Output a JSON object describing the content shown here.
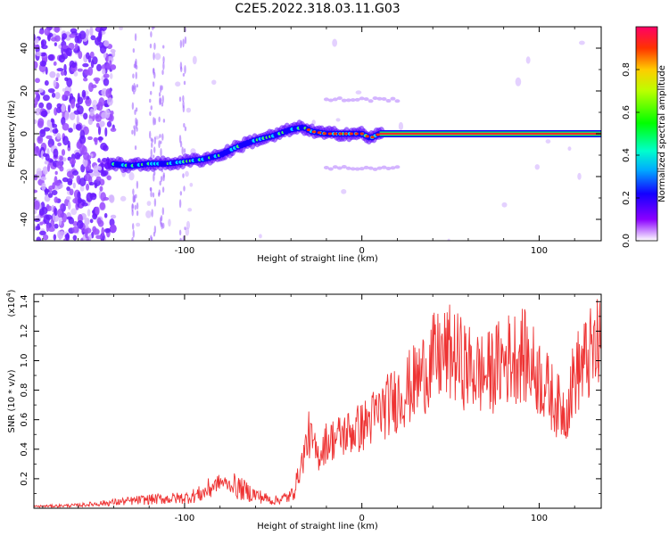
{
  "title": "C2E5.2022.318.03.11.G03",
  "chart_data": [
    {
      "type": "heatmap",
      "xlabel": "Height of straight line (km)",
      "ylabel": "Frequency (Hz)",
      "xlim": [
        -185,
        135
      ],
      "ylim": [
        -50,
        50
      ],
      "xticks": [
        -100,
        0,
        100
      ],
      "yticks": [
        -40,
        -20,
        0,
        20,
        40
      ],
      "colorbar": {
        "label": "Normalized spectral amplitude",
        "range": [
          0,
          1
        ],
        "ticks": [
          "0.0",
          "0.2",
          "0.4",
          "0.6",
          "0.8"
        ]
      },
      "ridge": {
        "x": [
          -142,
          -130,
          -120,
          -110,
          -100,
          -90,
          -80,
          -70,
          -60,
          -50,
          -40,
          -33,
          -28,
          -20,
          -10,
          0,
          5,
          10,
          30,
          60,
          90,
          120,
          133
        ],
        "y": [
          -14,
          -15,
          -14,
          -14,
          -13,
          -12,
          -10,
          -6,
          -3,
          -1,
          2,
          3,
          1,
          0,
          0,
          0,
          -2,
          0,
          0,
          0,
          0,
          0,
          0
        ]
      },
      "noise_region": {
        "x_end": -140
      },
      "sidebands": {
        "x_range": [
          -20,
          20
        ],
        "y": [
          -16,
          16
        ]
      }
    },
    {
      "type": "line",
      "xlabel": "Height of straight line (km)",
      "ylabel": "SNR (10 * v/v)",
      "yscale_label": "(x10",
      "yscale_exp": "4",
      "yscale_close": ")",
      "xlim": [
        -185,
        135
      ],
      "ylim": [
        0,
        14500
      ],
      "xticks": [
        -100,
        0,
        100
      ],
      "yticks": [
        "0.2",
        "0.4",
        "0.6",
        "0.8",
        "1.0",
        "1.2",
        "1.4"
      ],
      "color": "#ee3333",
      "series": [
        {
          "x": [
            -185,
            -160,
            -140,
            -120,
            -100,
            -90,
            -80,
            -70,
            -60,
            -50,
            -40,
            -35,
            -30,
            -25,
            -20,
            -10,
            0,
            10,
            20,
            30,
            40,
            50,
            60,
            70,
            80,
            90,
            100,
            110,
            115,
            120,
            130,
            135
          ],
          "y": [
            120,
            200,
            400,
            600,
            700,
            1000,
            1800,
            1400,
            900,
            500,
            800,
            2500,
            5000,
            3500,
            4500,
            5000,
            5500,
            6500,
            7500,
            8500,
            10000,
            10500,
            9500,
            9000,
            10000,
            10500,
            9000,
            7000,
            6500,
            9000,
            10500,
            11000
          ]
        }
      ]
    }
  ]
}
